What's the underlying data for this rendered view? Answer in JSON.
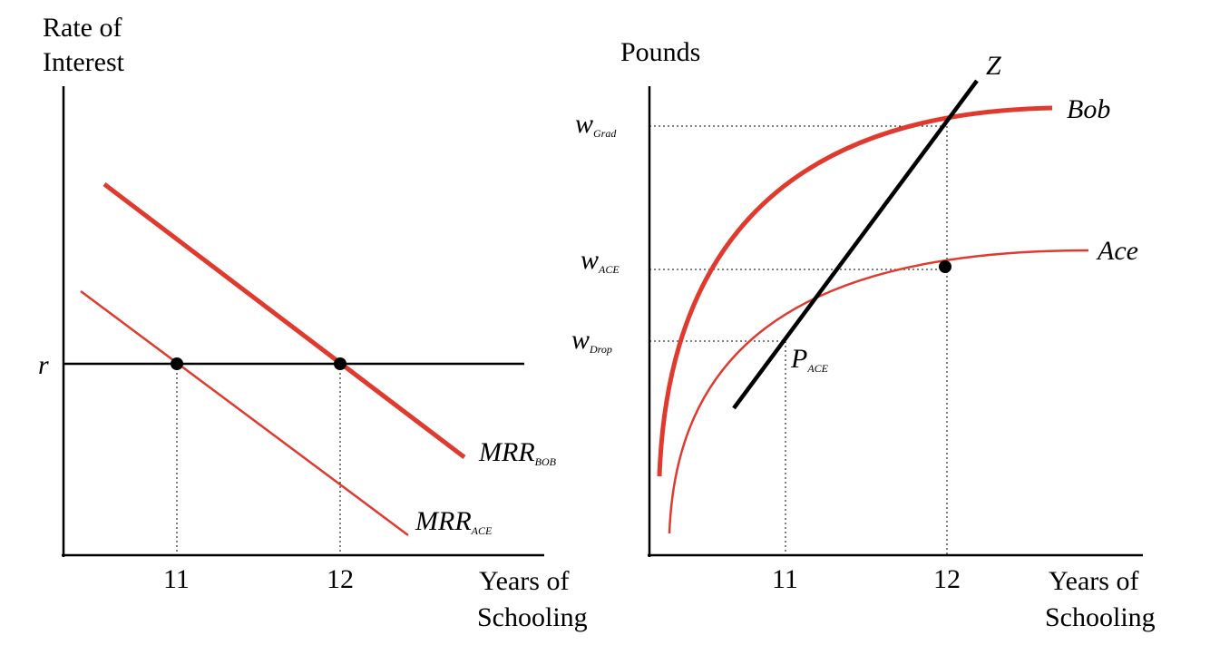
{
  "left_panel": {
    "y_axis_title_line1": "Rate of",
    "y_axis_title_line2": "Interest",
    "x_axis_title_line1": "Years of",
    "x_axis_title_line2": "Schooling",
    "r_label": "r",
    "tick_11": "11",
    "tick_12": "12",
    "mrr_bob_main": "MRR",
    "mrr_bob_sub": "BOB",
    "mrr_ace_main": "MRR",
    "mrr_ace_sub": "ACE"
  },
  "right_panel": {
    "y_axis_title": "Pounds",
    "x_axis_title_line1": "Years of",
    "x_axis_title_line2": "Schooling",
    "z_label": "Z",
    "bob_label": "Bob",
    "ace_label": "Ace",
    "w_grad_main": "w",
    "w_grad_sub": "Grad",
    "w_ace_main": "w",
    "w_ace_sub": "ACE",
    "w_drop_main": "w",
    "w_drop_sub": "Drop",
    "p_ace_main": "P",
    "p_ace_sub": "ACE",
    "tick_11": "11",
    "tick_12": "12"
  },
  "colors": {
    "red": "#e03a2f",
    "black": "#000000"
  }
}
